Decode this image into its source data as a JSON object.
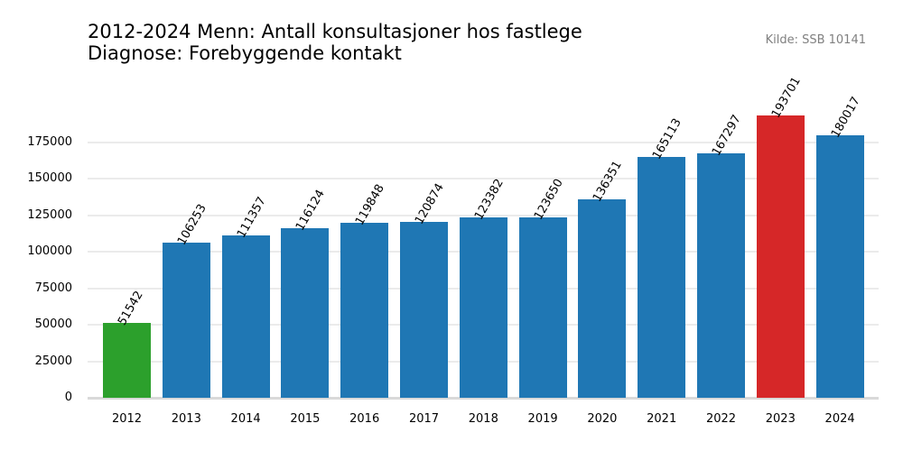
{
  "title": {
    "line1": "2012-2024 Menn: Antall konsultasjoner hos fastlege",
    "line2": "Diagnose: Forebyggende kontakt"
  },
  "source": "Kilde: SSB 10141",
  "colors": {
    "default_bar": "#1f77b4",
    "min_bar": "#2ca02c",
    "max_bar": "#d62728",
    "grid": "#ebebeb",
    "axis": "#d9d9d9"
  },
  "chart_data": {
    "type": "bar",
    "title": "2012-2024 Menn: Antall konsultasjoner hos fastlege\nDiagnose: Forebyggende kontakt",
    "xlabel": "",
    "ylabel": "",
    "categories": [
      "2012",
      "2013",
      "2014",
      "2015",
      "2016",
      "2017",
      "2018",
      "2019",
      "2020",
      "2021",
      "2022",
      "2023",
      "2024"
    ],
    "values": [
      51542,
      106253,
      111357,
      116124,
      119848,
      120874,
      123382,
      123650,
      136351,
      165113,
      167297,
      193701,
      180017
    ],
    "value_labels": [
      "51542",
      "106253",
      "111357",
      "116124",
      "119848",
      "120874",
      "123382",
      "123650",
      "136351",
      "165113",
      "167297",
      "193701",
      "180017"
    ],
    "highlight": {
      "min": "2012",
      "max": "2023"
    },
    "yticks": [
      0,
      25000,
      50000,
      75000,
      100000,
      125000,
      150000,
      175000
    ],
    "ytick_labels": [
      "0",
      "25000",
      "50000",
      "75000",
      "100000",
      "125000",
      "150000",
      "175000"
    ],
    "ylim": [
      0,
      200000
    ],
    "grid": true,
    "legend": null,
    "annotation": "Kilde: SSB 10141"
  }
}
